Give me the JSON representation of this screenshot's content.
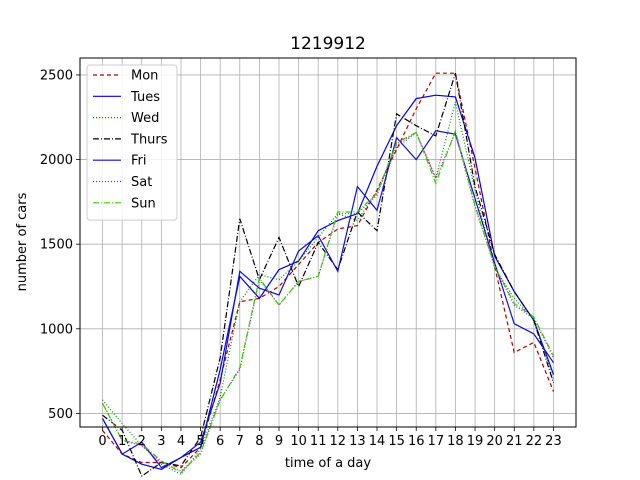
{
  "chart_data": {
    "type": "line",
    "title": "1219912",
    "xlabel": "time of a day",
    "ylabel": "number of cars",
    "x": [
      0,
      1,
      2,
      3,
      4,
      5,
      6,
      7,
      8,
      9,
      10,
      11,
      12,
      13,
      14,
      15,
      16,
      17,
      18,
      19,
      20,
      21,
      22,
      23
    ],
    "xlim": [
      -1.15,
      24.15
    ],
    "ylim": [
      420,
      2600
    ],
    "yticks": [
      500,
      1000,
      1500,
      2000,
      2500
    ],
    "grid": true,
    "legend_position": "top-left",
    "series": [
      {
        "name": "Mon",
        "color": "#aa0000",
        "dash": "4,3",
        "values": [
          400,
          260,
          210,
          210,
          180,
          300,
          700,
          1160,
          1180,
          1250,
          1380,
          1510,
          1590,
          1610,
          1820,
          2060,
          2300,
          2510,
          2510,
          1950,
          1370,
          860,
          920,
          630
        ]
      },
      {
        "name": "Tues",
        "color": "#0000ee",
        "dash": "",
        "values": [
          470,
          260,
          200,
          170,
          240,
          300,
          760,
          1310,
          1180,
          1350,
          1400,
          1580,
          1640,
          1680,
          1960,
          2200,
          2360,
          2380,
          2370,
          2010,
          1430,
          1220,
          1050,
          730
        ]
      },
      {
        "name": "Wed",
        "color": "#008800",
        "dash": "1,2",
        "values": [
          580,
          440,
          310,
          200,
          140,
          290,
          600,
          1160,
          1320,
          1290,
          1400,
          1540,
          1680,
          1640,
          1810,
          2070,
          2160,
          1890,
          2340,
          1820,
          1360,
          1180,
          1060,
          700
        ]
      },
      {
        "name": "Thurs",
        "color": "#000000",
        "dash": "6,2,1,2",
        "values": [
          490,
          400,
          130,
          210,
          190,
          360,
          830,
          1650,
          1290,
          1540,
          1250,
          1510,
          1350,
          1690,
          1580,
          2270,
          2200,
          2140,
          2510,
          1840,
          1440,
          1220,
          1050,
          680
        ]
      },
      {
        "name": "Fri",
        "color": "#1010cc",
        "dash": "",
        "values": [
          470,
          260,
          330,
          180,
          240,
          330,
          680,
          1340,
          1240,
          1200,
          1460,
          1550,
          1340,
          1840,
          1700,
          2130,
          2000,
          2170,
          2150,
          1770,
          1390,
          1030,
          970,
          800
        ]
      },
      {
        "name": "Sat",
        "color": "#cc00cc",
        "dash": "1,2",
        "values": [
          560,
          340,
          310,
          210,
          160,
          260,
          580,
          760,
          1290,
          1140,
          1280,
          1310,
          1680,
          1680,
          1790,
          2090,
          2160,
          1890,
          2160,
          1720,
          1370,
          1140,
          1060,
          830
        ]
      },
      {
        "name": "Sun",
        "color": "#33cc00",
        "dash": "6,2,1,2",
        "values": [
          560,
          340,
          320,
          220,
          150,
          270,
          580,
          770,
          1300,
          1140,
          1280,
          1310,
          1690,
          1690,
          1800,
          2100,
          2160,
          1860,
          2170,
          1730,
          1370,
          1150,
          1070,
          840
        ]
      }
    ]
  }
}
